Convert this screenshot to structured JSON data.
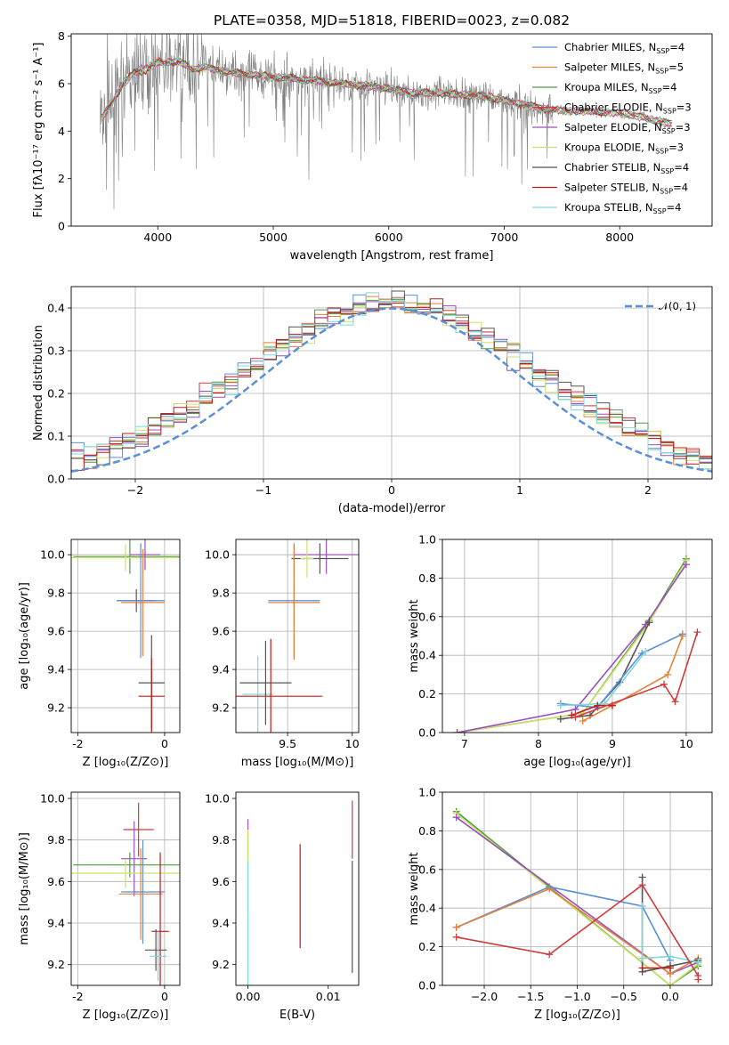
{
  "colors": {
    "Chabrier MILES": "#5b8fd6",
    "Salpeter MILES": "#e0823b",
    "Kroupa MILES": "#4c9e3e",
    "Chabrier ELODIE": "#d03b3b",
    "Salpeter ELODIE": "#9b4fbf",
    "Kroupa ELODIE": "#cde06a",
    "Chabrier STELIB": "#555555",
    "Salpeter STELIB": "#c21a1a",
    "Kroupa STELIB": "#7fd8d8",
    "data": "#808080",
    "normal": "#5b8fd6"
  },
  "chart_data": [
    {
      "id": "spectrum",
      "type": "line",
      "title": "PLATE=0358, MJD=51818, FIBERID=0023, z=0.082",
      "xlabel": "wavelength [Angstrom, rest frame]",
      "ylabel": "Flux [fλ10⁻¹⁷ erg cm⁻² s⁻¹ A⁻¹]",
      "xlim": [
        3250,
        8800
      ],
      "ylim": [
        0,
        8.1
      ],
      "xticks": [
        4000,
        5000,
        6000,
        7000,
        8000
      ],
      "yticks": [
        0,
        2,
        4,
        6,
        8
      ],
      "grid": false,
      "legend_position": "top-right",
      "legend": [
        {
          "label": "Chabrier MILES, N",
          "sub": "SSP",
          "suffix": "=4",
          "key": "Chabrier MILES"
        },
        {
          "label": "Salpeter MILES, N",
          "sub": "SSP",
          "suffix": "=5",
          "key": "Salpeter MILES"
        },
        {
          "label": "Kroupa MILES, N",
          "sub": "SSP",
          "suffix": "=4",
          "key": "Kroupa MILES"
        },
        {
          "label": "Chabrier ELODIE, N",
          "sub": "SSP",
          "suffix": "=3",
          "key": "Chabrier ELODIE"
        },
        {
          "label": "Salpeter ELODIE, N",
          "sub": "SSP",
          "suffix": "=3",
          "key": "Salpeter ELODIE"
        },
        {
          "label": "Kroupa ELODIE, N",
          "sub": "SSP",
          "suffix": "=3",
          "key": "Kroupa ELODIE"
        },
        {
          "label": "Chabrier STELIB, N",
          "sub": "SSP",
          "suffix": "=4",
          "key": "Chabrier STELIB"
        },
        {
          "label": "Salpeter STELIB, N",
          "sub": "SSP",
          "suffix": "=4",
          "key": "Salpeter STELIB"
        },
        {
          "label": "Kroupa STELIB, N",
          "sub": "SSP",
          "suffix": "=4",
          "key": "Kroupa STELIB"
        }
      ],
      "continuum": {
        "x": [
          3510,
          3600,
          3700,
          3800,
          3900,
          4000,
          4100,
          4200,
          4300,
          4400,
          4600,
          4800,
          5000,
          5200,
          5400,
          5600,
          5800,
          6000,
          6200,
          6400,
          6600,
          6800,
          7000,
          7200,
          7400,
          7600,
          7800,
          8000,
          8200,
          8300,
          8450
        ],
        "y": [
          4.5,
          5.2,
          6.0,
          6.5,
          6.6,
          6.9,
          6.9,
          6.9,
          6.6,
          6.7,
          6.5,
          6.4,
          6.3,
          6.2,
          6.1,
          6.0,
          5.9,
          5.8,
          5.6,
          5.6,
          5.55,
          5.5,
          5.3,
          5.1,
          4.9,
          4.85,
          4.8,
          4.75,
          4.6,
          4.45,
          4.3
        ]
      },
      "data_range": [
        3500,
        7420
      ]
    },
    {
      "id": "residuals",
      "type": "histogram",
      "xlabel": "(data-model)/error",
      "ylabel": "Normed distribution",
      "xlim": [
        -2.5,
        2.5
      ],
      "ylim": [
        0,
        0.45
      ],
      "xticks": [
        -2,
        -1,
        0,
        1,
        2
      ],
      "xtick_labels": [
        "−2",
        "−1",
        "0",
        "1",
        "2"
      ],
      "yticks": [
        0,
        0.1,
        0.2,
        0.3,
        0.4
      ],
      "ytick_labels": [
        "0.0",
        "0.1",
        "0.2",
        "0.3",
        "0.4"
      ],
      "grid": true,
      "legend_position": "top-right",
      "legend_label": "𝒩(0, 1)",
      "bin_width": 0.1,
      "bin_start": -2.5
    },
    {
      "id": "age-vs-Z",
      "type": "errorbar",
      "xlabel": "Z [log₁₀(Z/Z⊙)]",
      "ylabel": "age  [log₁₀(age/yr)]",
      "xlim": [
        -2.15,
        0.35
      ],
      "ylim": [
        9.07,
        10.08
      ],
      "xticks": [
        -2,
        0
      ],
      "yticks": [
        9.2,
        9.4,
        9.6,
        9.8,
        10.0
      ],
      "grid": true,
      "points": [
        {
          "model": "Kroupa MILES",
          "x": -0.8,
          "xerr": 1.3,
          "y": 9.99,
          "yerr": 0.09
        },
        {
          "model": "Kroupa ELODIE",
          "x": -0.9,
          "xerr": 1.25,
          "y": 9.985,
          "yerr": 0.07
        },
        {
          "model": "Salpeter ELODIE",
          "x": -0.45,
          "xerr": 0.35,
          "y": 10.0,
          "yerr": 0.08
        },
        {
          "model": "Chabrier STELIB",
          "x": -0.65,
          "xerr": 0.45,
          "y": 9.76,
          "yerr": 0.06
        },
        {
          "model": "Chabrier MILES",
          "x": -0.55,
          "xerr": 0.55,
          "y": 9.76,
          "yerr": 0.3
        },
        {
          "model": "Salpeter MILES",
          "x": -0.5,
          "xerr": 0.5,
          "y": 9.75,
          "yerr": 0.28
        },
        {
          "model": "Kroupa STELIB",
          "x": -0.3,
          "xerr": 0.05,
          "y": 9.26,
          "yerr": 0.15
        },
        {
          "model": "Chabrier STELIB",
          "x": -0.3,
          "xerr": 0.3,
          "y": 9.33,
          "yerr": 0.25
        },
        {
          "model": "Salpeter STELIB",
          "x": -0.3,
          "xerr": 0.3,
          "y": 9.26,
          "yerr": 0.2
        }
      ]
    },
    {
      "id": "age-vs-mass",
      "type": "errorbar",
      "xlabel": "mass [log₁₀(M/M⊙)]",
      "ylabel": "",
      "xlim": [
        9.1,
        10.05
      ],
      "ylim": [
        9.07,
        10.08
      ],
      "xticks": [
        9.5,
        10.0
      ],
      "yticks": [
        9.2,
        9.4,
        9.6,
        9.8,
        10.0
      ],
      "grid": true,
      "points": [
        {
          "model": "Salpeter ELODIE",
          "x": 9.8,
          "xerr": 0.25,
          "y": 10.0,
          "yerr": 0.1
        },
        {
          "model": "Chabrier STELIB",
          "x": 9.75,
          "xerr": 0.22,
          "y": 9.98,
          "yerr": 0.08
        },
        {
          "model": "Kroupa ELODIE",
          "x": 9.65,
          "xerr": 0.05,
          "y": 9.98,
          "yerr": 0.1
        },
        {
          "model": "Chabrier MILES",
          "x": 9.55,
          "xerr": 0.2,
          "y": 9.76,
          "yerr": 0.3
        },
        {
          "model": "Salpeter MILES",
          "x": 9.55,
          "xerr": 0.2,
          "y": 9.75,
          "yerr": 0.3
        },
        {
          "model": "Kroupa STELIB",
          "x": 9.27,
          "xerr": 0.12,
          "y": 9.27,
          "yerr": 0.2
        },
        {
          "model": "Chabrier STELIB",
          "x": 9.33,
          "xerr": 0.2,
          "y": 9.33,
          "yerr": 0.22
        },
        {
          "model": "Salpeter STELIB",
          "x": 9.37,
          "xerr": 0.4,
          "y": 9.26,
          "yerr": 0.3
        }
      ]
    },
    {
      "id": "weight-vs-age",
      "type": "line",
      "xlabel": "age  [log₁₀(age/yr)]",
      "ylabel": "mass weight",
      "xlim": [
        6.7,
        10.35
      ],
      "ylim": [
        0,
        1
      ],
      "xticks": [
        7,
        8,
        9,
        10
      ],
      "yticks": [
        0,
        0.2,
        0.4,
        0.6,
        0.8,
        1.0
      ],
      "ytick_labels": [
        "0.0",
        "0.2",
        "0.4",
        "0.6",
        "0.8",
        "1.0"
      ],
      "grid": true,
      "series": [
        {
          "model": "Kroupa MILES",
          "x": [
            6.9,
            8.6,
            9.5,
            10.0
          ],
          "y": [
            0.0,
            0.1,
            0.58,
            0.9
          ]
        },
        {
          "model": "Kroupa ELODIE",
          "x": [
            6.9,
            8.6,
            9.5,
            10.0
          ],
          "y": [
            0.0,
            0.1,
            0.57,
            0.89
          ]
        },
        {
          "model": "Salpeter ELODIE",
          "x": [
            6.9,
            8.5,
            9.45,
            10.0
          ],
          "y": [
            0.0,
            0.12,
            0.56,
            0.87
          ]
        },
        {
          "model": "Chabrier STELIB",
          "x": [
            8.3,
            8.7,
            9.1,
            9.5
          ],
          "y": [
            0.07,
            0.09,
            0.26,
            0.57
          ]
        },
        {
          "model": "Chabrier MILES",
          "x": [
            8.3,
            8.8,
            9.4,
            9.95
          ],
          "y": [
            0.15,
            0.13,
            0.41,
            0.51
          ]
        },
        {
          "model": "Salpeter MILES",
          "x": [
            8.6,
            9.0,
            9.75,
            9.95
          ],
          "y": [
            0.06,
            0.14,
            0.3,
            0.5
          ]
        },
        {
          "model": "Kroupa STELIB",
          "x": [
            8.3,
            8.9,
            9.45
          ],
          "y": [
            0.14,
            0.15,
            0.42
          ]
        },
        {
          "model": "Salpeter STELIB",
          "x": [
            8.45,
            8.8,
            9.0
          ],
          "y": [
            0.09,
            0.14,
            0.14
          ]
        },
        {
          "model": "Chabrier ELODIE",
          "x": [
            8.5,
            9.7,
            9.85,
            10.15
          ],
          "y": [
            0.08,
            0.25,
            0.16,
            0.52
          ]
        }
      ]
    },
    {
      "id": "mass-vs-Z",
      "type": "errorbar",
      "xlabel": "Z [log₁₀(Z/Z⊙)]",
      "ylabel": "mass [log₁₀(M/M⊙)]",
      "xlim": [
        -2.15,
        0.35
      ],
      "ylim": [
        9.1,
        10.03
      ],
      "xticks": [
        -2,
        0
      ],
      "yticks": [
        9.2,
        9.4,
        9.6,
        9.8,
        10.0
      ],
      "grid": true,
      "points": [
        {
          "model": "Chabrier ELODIE",
          "x": -0.6,
          "xerr": 0.35,
          "y": 9.85,
          "yerr": 0.13
        },
        {
          "model": "Salpeter ELODIE",
          "x": -0.7,
          "xerr": 0.3,
          "y": 9.71,
          "yerr": 0.18
        },
        {
          "model": "Kroupa MILES",
          "x": -0.8,
          "xerr": 1.3,
          "y": 9.68,
          "yerr": 0.06
        },
        {
          "model": "Kroupa ELODIE",
          "x": -0.9,
          "xerr": 1.25,
          "y": 9.64,
          "yerr": 0.07
        },
        {
          "model": "Chabrier MILES",
          "x": -0.5,
          "xerr": 0.5,
          "y": 9.55,
          "yerr": 0.25
        },
        {
          "model": "Salpeter MILES",
          "x": -0.55,
          "xerr": 0.5,
          "y": 9.54,
          "yerr": 0.22
        },
        {
          "model": "Salpeter STELIB",
          "x": -0.1,
          "xerr": 0.2,
          "y": 9.36,
          "yerr": 0.38
        },
        {
          "model": "Chabrier STELIB",
          "x": -0.2,
          "xerr": 0.25,
          "y": 9.27,
          "yerr": 0.1
        },
        {
          "model": "Kroupa STELIB",
          "x": -0.15,
          "xerr": 0.2,
          "y": 9.24,
          "yerr": 0.12
        }
      ]
    },
    {
      "id": "mass-vs-ebv",
      "type": "errorbar",
      "xlabel": "E(B-V)",
      "ylabel": "",
      "xlim": [
        -0.0015,
        0.0138
      ],
      "ylim": [
        9.1,
        10.03
      ],
      "xticks": [
        0.0,
        0.01
      ],
      "xtick_labels": [
        "0.00",
        "0.01"
      ],
      "yticks": [
        9.2,
        9.4,
        9.6,
        9.8,
        10.0
      ],
      "grid": false,
      "points": [
        {
          "model": "Salpeter ELODIE",
          "x": 0.0,
          "y": 9.8,
          "yerr": 0.1
        },
        {
          "model": "Kroupa ELODIE",
          "x": 0.0,
          "y": 9.65,
          "yerr": 0.2
        },
        {
          "model": "Kroupa STELIB",
          "x": 0.0,
          "y": 9.4,
          "yerr": 0.3
        },
        {
          "model": "Salpeter STELIB",
          "x": 0.0065,
          "y": 9.53,
          "yerr": 0.25
        },
        {
          "model": "Chabrier ELODIE",
          "x": 0.013,
          "y": 9.85,
          "yerr": 0.14
        },
        {
          "model": "Chabrier STELIB",
          "x": 0.013,
          "y": 9.43,
          "yerr": 0.27
        }
      ]
    },
    {
      "id": "weight-vs-Z",
      "type": "line",
      "xlabel": "Z [log₁₀(Z/Z⊙)]",
      "ylabel": "mass weight",
      "xlim": [
        -2.45,
        0.45
      ],
      "ylim": [
        0,
        1
      ],
      "xticks": [
        -2.0,
        -1.5,
        -1.0,
        -0.5,
        0.0
      ],
      "xtick_labels": [
        "−2.0",
        "−1.5",
        "−1.0",
        "−0.5",
        "0.0"
      ],
      "yticks": [
        0,
        0.2,
        0.4,
        0.6,
        0.8,
        1.0
      ],
      "ytick_labels": [
        "0.0",
        "0.2",
        "0.4",
        "0.6",
        "0.8",
        "1.0"
      ],
      "grid": true,
      "series": [
        {
          "model": "Kroupa MILES",
          "x": [
            -2.3,
            0.0,
            0.3
          ],
          "y": [
            0.9,
            0.0,
            0.1
          ]
        },
        {
          "model": "Kroupa ELODIE",
          "x": [
            -2.3,
            0.0,
            0.3
          ],
          "y": [
            0.89,
            0.0,
            0.11
          ]
        },
        {
          "model": "Salpeter ELODIE",
          "x": [
            -2.3,
            0.0,
            0.3
          ],
          "y": [
            0.87,
            0.06,
            0.12
          ]
        },
        {
          "model": "Chabrier MILES",
          "x": [
            -2.3,
            -1.3,
            -0.3,
            0.0
          ],
          "y": [
            0.3,
            0.51,
            0.41,
            0.13
          ]
        },
        {
          "model": "Salpeter MILES",
          "x": [
            -2.3,
            -1.3,
            0.0,
            0.3
          ],
          "y": [
            0.3,
            0.5,
            0.06,
            0.14
          ]
        },
        {
          "model": "Chabrier STELIB",
          "x": [
            -0.3,
            -0.3,
            0.0,
            0.3
          ],
          "y": [
            0.56,
            0.07,
            0.1,
            0.13
          ]
        },
        {
          "model": "Kroupa STELIB",
          "x": [
            -0.3,
            -0.3,
            0.0,
            0.3
          ],
          "y": [
            0.41,
            0.14,
            0.15,
            0.12
          ]
        },
        {
          "model": "Chabrier ELODIE",
          "x": [
            -2.3,
            -1.3,
            -0.3,
            0.3,
            0.3
          ],
          "y": [
            0.25,
            0.16,
            0.52,
            0.05,
            0.03
          ]
        },
        {
          "model": "Salpeter STELIB",
          "x": [
            -0.3,
            0.0
          ],
          "y": [
            0.09,
            0.09
          ]
        }
      ]
    }
  ]
}
